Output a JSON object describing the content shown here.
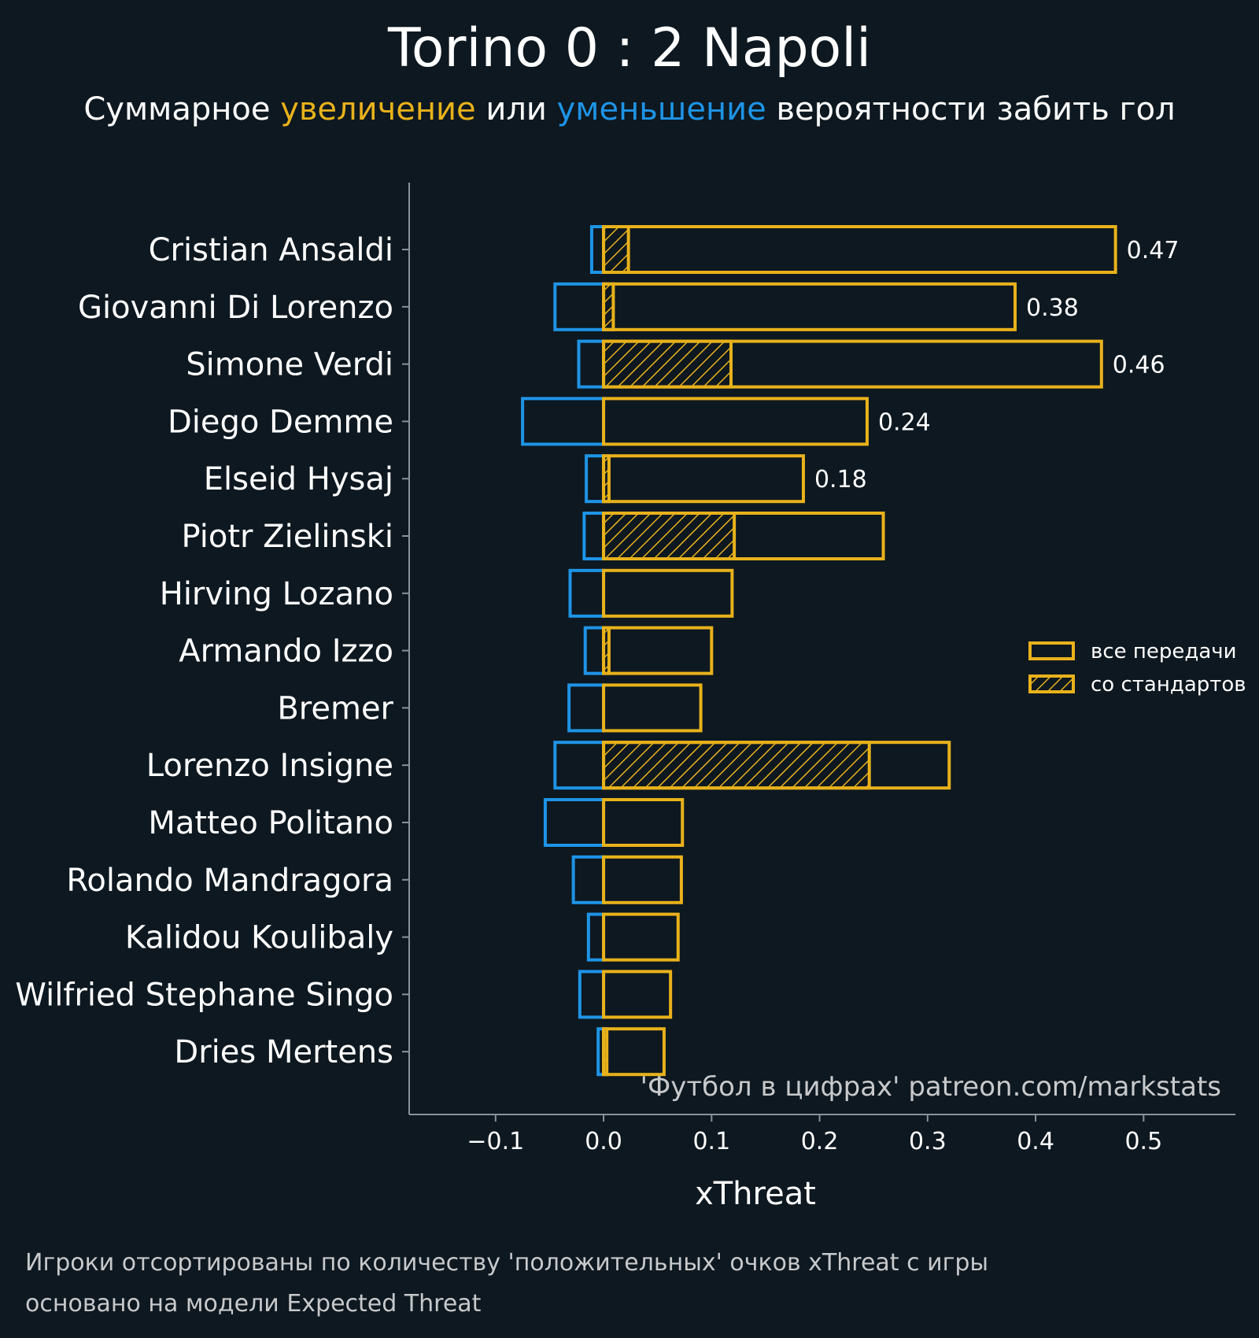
{
  "colors": {
    "background": "#0e1820",
    "positive": "#e8b21b",
    "negative": "#1e94e6",
    "axis": "#8a939a",
    "text": "#ffffff",
    "muted": "#c7c9cb"
  },
  "header": {
    "title": "Torino 0 : 2 Napoli",
    "subtitle_part1": "Суммарное ",
    "subtitle_increase": "увеличение",
    "subtitle_part2": " или ",
    "subtitle_decrease": "уменьшение",
    "subtitle_part3": " вероятности забить гол"
  },
  "chart_data": {
    "type": "bar",
    "orientation": "horizontal",
    "xlabel": "xThreat",
    "xlim": [
      -0.18,
      0.585
    ],
    "xticks": [
      -0.1,
      0.0,
      0.1,
      0.2,
      0.3,
      0.4,
      0.5
    ],
    "xtick_labels": [
      "−0.1",
      "0.0",
      "0.1",
      "0.2",
      "0.3",
      "0.4",
      "0.5"
    ],
    "categories": [
      "Cristian Ansaldi",
      "Giovanni Di Lorenzo",
      "Simone Verdi",
      "Diego Demme",
      "Elseid Hysaj",
      "Piotr Zielinski",
      "Hirving Lozano",
      "Armando Izzo",
      "Bremer",
      "Lorenzo Insigne",
      "Matteo Politano",
      "Rolando Mandragora",
      "Kalidou Koulibaly",
      "Wilfried Stephane Singo",
      "Dries Mertens"
    ],
    "series": [
      {
        "name": "уменьшение",
        "style": "outline-blue",
        "values": [
          -0.011,
          -0.045,
          -0.023,
          -0.075,
          -0.016,
          -0.018,
          -0.031,
          -0.017,
          -0.032,
          -0.045,
          -0.054,
          -0.028,
          -0.014,
          -0.022,
          -0.005
        ]
      },
      {
        "name": "все передачи",
        "style": "outline-gold",
        "values": [
          0.474,
          0.381,
          0.461,
          0.244,
          0.185,
          0.259,
          0.119,
          0.1,
          0.09,
          0.32,
          0.073,
          0.072,
          0.069,
          0.062,
          0.056
        ]
      },
      {
        "name": "со стандартов",
        "style": "hatched-gold",
        "values": [
          0.023,
          0.009,
          0.118,
          0.0,
          0.005,
          0.121,
          0.0,
          0.005,
          0.0,
          0.246,
          0.0,
          0.0,
          0.0,
          0.0,
          0.003
        ]
      }
    ],
    "value_labels": [
      "0.47",
      "0.38",
      "0.46",
      "0.24",
      "0.18",
      null,
      null,
      null,
      null,
      null,
      null,
      null,
      null,
      null,
      null
    ],
    "legend": {
      "position": "right-middle",
      "items": [
        "все передачи",
        "со стандартов"
      ]
    }
  },
  "watermark": "'Футбол в цифрах' patreon.com/markstats",
  "footnote": {
    "line1": "Игроки отсортированы по количеству 'положительных' очков xThreat с игры",
    "line2": "основано на модели Expected Threat"
  }
}
